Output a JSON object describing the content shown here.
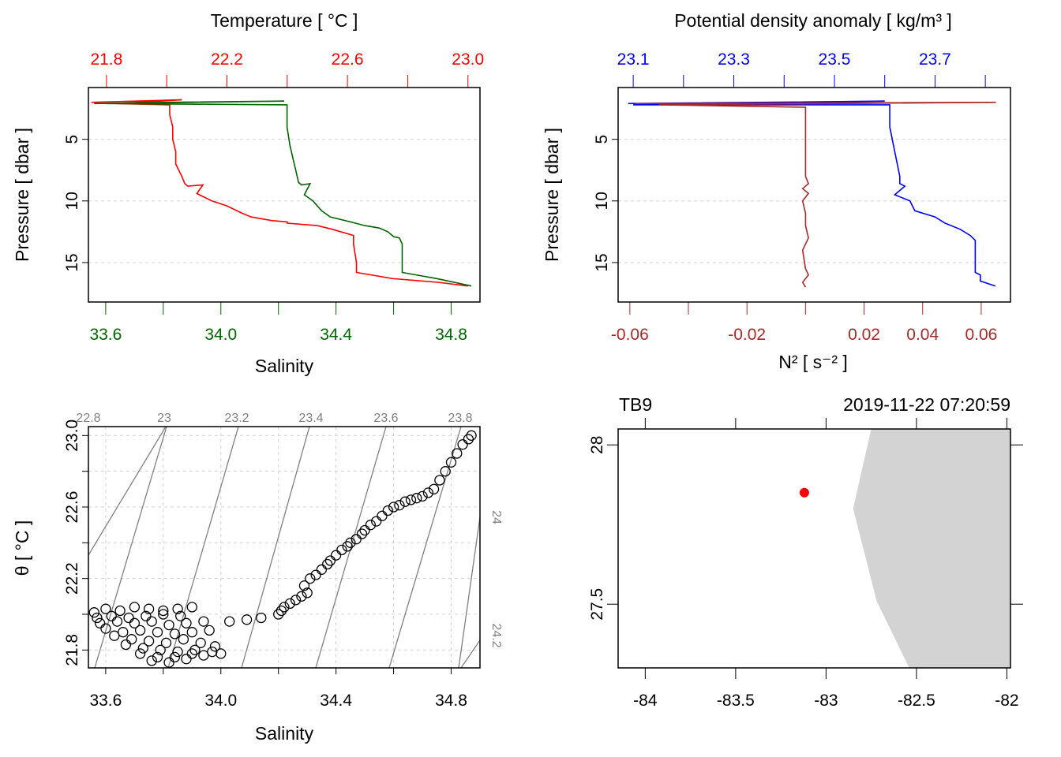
{
  "colors": {
    "temperature": "#ff0000",
    "salinity": "#006400",
    "density": "#0000ff",
    "n2": "#a52a2a",
    "isopycnal": "#808080",
    "grid": "#d3d3d3",
    "land": "#d3d3d3",
    "station": "#ff0000",
    "points": "#000000"
  },
  "chart_data": [
    {
      "type": "line",
      "name": "salinity-temperature-profile",
      "ylabel": "Pressure [ dbar ]",
      "ylim": [
        18.2,
        0.8
      ],
      "yticks": [
        5,
        10,
        15
      ],
      "top_axis": {
        "label": "Temperature [ °C ]",
        "range": [
          21.74,
          23.04
        ],
        "ticks": [
          21.8,
          22.0,
          22.2,
          22.4,
          22.6,
          22.8,
          23.0
        ],
        "tick_labels": [
          "21.8",
          "",
          "22.2",
          "",
          "22.6",
          "",
          "23.0"
        ]
      },
      "bottom_axis": {
        "label": "Salinity",
        "range": [
          33.54,
          34.9
        ],
        "ticks": [
          33.6,
          33.8,
          34.0,
          34.2,
          34.4,
          34.6,
          34.8
        ],
        "tick_labels": [
          "33.6",
          "",
          "34.0",
          "",
          "34.4",
          "",
          "34.8"
        ]
      },
      "series": [
        {
          "color": "temperature",
          "axis": "top",
          "x": [
            21.75,
            21.9,
            22.05,
            21.83,
            22.01,
            22.01,
            22.02,
            22.02,
            22.03,
            22.03,
            22.05,
            22.06,
            22.07,
            22.12,
            22.1,
            22.15,
            22.2,
            22.25,
            22.28,
            22.35,
            22.4,
            22.4,
            22.5,
            22.55,
            22.62,
            22.62,
            22.63,
            22.63,
            22.75,
            22.9,
            23.0
          ],
          "y": [
            2.0,
            1.9,
            1.8,
            2.1,
            2.2,
            3.0,
            4.0,
            5.0,
            6.0,
            7.0,
            8.0,
            8.6,
            8.8,
            8.7,
            9.4,
            10.0,
            10.4,
            11.0,
            11.3,
            11.6,
            11.7,
            11.8,
            12.0,
            12.3,
            12.8,
            13.5,
            15.0,
            15.8,
            16.3,
            16.6,
            16.9
          ]
        },
        {
          "color": "salinity",
          "axis": "bottom",
          "x": [
            33.56,
            33.8,
            34.22,
            33.6,
            34.23,
            34.23,
            34.24,
            34.25,
            34.26,
            34.27,
            34.28,
            34.31,
            34.29,
            34.32,
            34.35,
            34.38,
            34.45,
            34.5,
            34.55,
            34.58,
            34.6,
            34.62,
            34.63,
            34.63,
            34.75,
            34.87
          ],
          "y": [
            2.1,
            2.0,
            1.9,
            2.1,
            2.2,
            4.0,
            5.5,
            6.5,
            7.5,
            8.5,
            8.7,
            8.6,
            9.5,
            10.0,
            10.8,
            11.3,
            11.7,
            12.0,
            12.2,
            12.5,
            12.9,
            13.0,
            13.5,
            15.8,
            16.3,
            16.9
          ]
        }
      ]
    },
    {
      "type": "line",
      "name": "density-n2-profile",
      "ylabel": "Pressure [ dbar ]",
      "ylim": [
        18.2,
        0.8
      ],
      "yticks": [
        5,
        10,
        15
      ],
      "top_axis": {
        "label": "Potential density anomaly [ kg/m³ ]",
        "range": [
          23.07,
          23.85
        ],
        "ticks": [
          23.1,
          23.2,
          23.3,
          23.4,
          23.5,
          23.6,
          23.7,
          23.8
        ],
        "tick_labels": [
          "23.1",
          "",
          "23.3",
          "",
          "23.5",
          "",
          "23.7",
          ""
        ]
      },
      "bottom_axis": {
        "label": "N² [ s⁻² ]",
        "range": [
          -0.064,
          0.07
        ],
        "ticks": [
          -0.06,
          -0.04,
          -0.02,
          0.0,
          0.02,
          0.04,
          0.06
        ],
        "tick_labels": [
          "-0.06",
          "",
          "-0.02",
          "",
          "0.02",
          "0.04",
          "0.06"
        ]
      },
      "series": [
        {
          "color": "density",
          "axis": "top",
          "x": [
            23.09,
            23.35,
            23.6,
            23.1,
            23.61,
            23.61,
            23.62,
            23.63,
            23.63,
            23.64,
            23.62,
            23.65,
            23.66,
            23.7,
            23.72,
            23.75,
            23.77,
            23.78,
            23.78,
            23.79,
            23.79,
            23.82
          ],
          "y": [
            2.1,
            2.0,
            1.9,
            2.2,
            2.2,
            4.0,
            6.0,
            8.0,
            8.6,
            8.8,
            9.5,
            10.0,
            10.8,
            11.3,
            11.8,
            12.3,
            12.8,
            13.2,
            15.8,
            16.0,
            16.5,
            16.9
          ]
        },
        {
          "color": "n2",
          "axis": "bottom",
          "x": [
            -0.058,
            0.065,
            -0.05,
            0.0,
            0.0,
            0.001,
            -0.001,
            0.001,
            -0.001,
            0.0,
            0.0,
            0.001,
            -0.001,
            0.0,
            0.001,
            -0.001,
            0.0
          ],
          "y": [
            2.1,
            2.0,
            2.2,
            2.4,
            8.0,
            8.6,
            9.0,
            9.4,
            10.0,
            11.0,
            12.0,
            13.0,
            14.0,
            15.5,
            16.0,
            16.6,
            17.0
          ]
        }
      ]
    },
    {
      "type": "scatter",
      "name": "ts-diagram",
      "xlabel": "Salinity",
      "ylabel": "θ [ °C ]",
      "xlim": [
        33.54,
        34.9
      ],
      "ylim": [
        21.7,
        23.05
      ],
      "xticks": [
        33.6,
        34.0,
        34.4,
        34.8
      ],
      "yticks": [
        21.8,
        22.2,
        22.6,
        23.0
      ],
      "isopycnal_labels": [
        "22.8",
        "23",
        "23.2",
        "23.4",
        "23.6",
        "23.8",
        "24",
        "24.2"
      ],
      "points": {
        "x": [
          33.56,
          33.6,
          33.65,
          33.7,
          33.75,
          33.8,
          33.85,
          33.9,
          33.57,
          33.62,
          33.68,
          33.74,
          33.8,
          33.86,
          33.58,
          33.64,
          33.7,
          33.76,
          33.82,
          33.88,
          33.94,
          33.6,
          33.66,
          33.72,
          33.78,
          33.84,
          33.9,
          33.96,
          33.63,
          33.69,
          33.75,
          33.81,
          33.87,
          33.93,
          33.98,
          33.67,
          33.73,
          33.79,
          33.85,
          33.91,
          33.97,
          33.72,
          33.78,
          33.84,
          33.9,
          33.76,
          33.82,
          33.88,
          33.94,
          34.0,
          34.03,
          34.09,
          34.14,
          34.2,
          34.21,
          34.22,
          34.24,
          34.26,
          34.28,
          34.3,
          34.29,
          34.31,
          34.33,
          34.35,
          34.37,
          34.38,
          34.4,
          34.42,
          34.44,
          34.45,
          34.47,
          34.49,
          34.5,
          34.52,
          34.54,
          34.56,
          34.58,
          34.6,
          34.62,
          34.64,
          34.66,
          34.68,
          34.7,
          34.72,
          34.74,
          34.76,
          34.78,
          34.8,
          34.82,
          34.84,
          34.86,
          34.87
        ],
        "y": [
          22.01,
          22.03,
          22.02,
          22.04,
          22.03,
          22.02,
          22.03,
          22.04,
          21.98,
          21.99,
          21.98,
          21.99,
          22.0,
          21.99,
          21.95,
          21.96,
          21.95,
          21.96,
          21.94,
          21.95,
          21.96,
          21.92,
          21.9,
          21.91,
          21.9,
          21.89,
          21.9,
          21.91,
          21.88,
          21.86,
          21.85,
          21.84,
          21.86,
          21.84,
          21.82,
          21.83,
          21.81,
          21.8,
          21.79,
          21.8,
          21.79,
          21.78,
          21.76,
          21.76,
          21.78,
          21.74,
          21.73,
          21.75,
          21.77,
          21.78,
          21.96,
          21.97,
          21.98,
          22.0,
          22.02,
          22.04,
          22.06,
          22.08,
          22.1,
          22.12,
          22.16,
          22.2,
          22.22,
          22.25,
          22.28,
          22.3,
          22.33,
          22.36,
          22.38,
          22.4,
          22.42,
          22.45,
          22.47,
          22.5,
          22.52,
          22.55,
          22.58,
          22.6,
          22.61,
          22.63,
          22.64,
          22.65,
          22.66,
          22.68,
          22.7,
          22.75,
          22.8,
          22.85,
          22.9,
          22.95,
          22.98,
          23.0
        ]
      }
    },
    {
      "type": "map",
      "name": "station-map",
      "station": "TB9",
      "datetime": "2019-11-22 07:20:59",
      "xlim": [
        -84.15,
        -81.98
      ],
      "ylim": [
        27.3,
        28.05
      ],
      "xticks": [
        -84,
        -83.5,
        -83,
        -82.5,
        -82
      ],
      "yticks": [
        27.5,
        28
      ],
      "station_location": {
        "lon": -83.12,
        "lat": 27.85
      },
      "land_polygon": {
        "lon": [
          -82.62,
          -81.98,
          -81.98,
          -82.54,
          -82.72,
          -82.85,
          -82.75
        ],
        "lat": [
          28.05,
          28.05,
          27.3,
          27.3,
          27.51,
          27.8,
          28.05
        ]
      }
    }
  ]
}
